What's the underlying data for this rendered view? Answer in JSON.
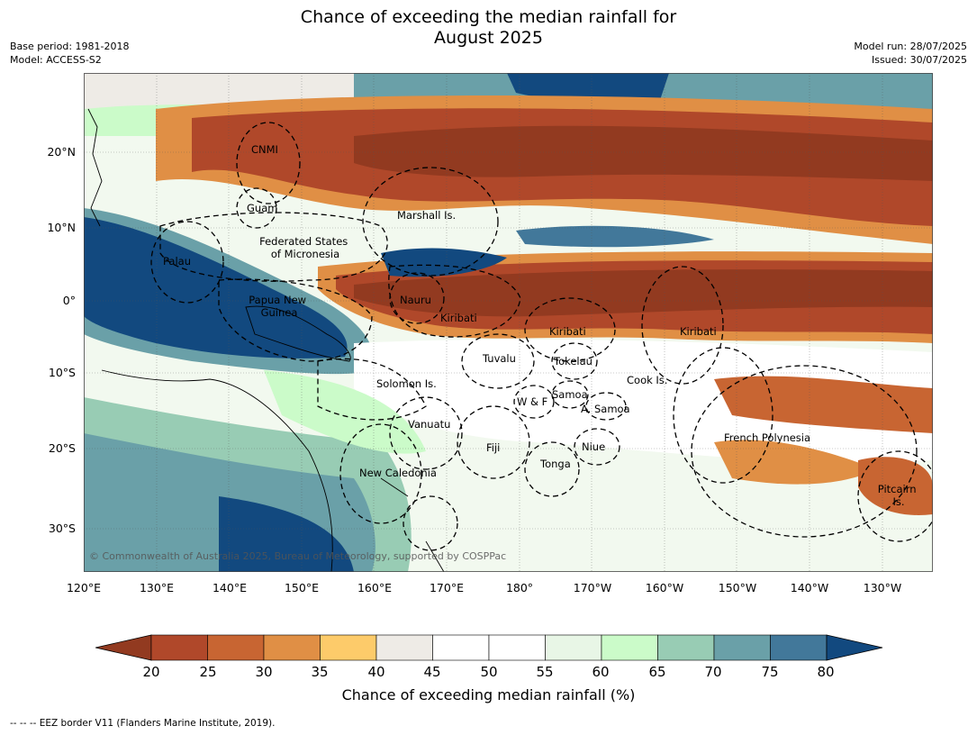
{
  "title_line1": "Chance of exceeding the median rainfall for",
  "title_line2": "August 2025",
  "meta_left": [
    "Base period: 1981-2018",
    "Model: ACCESS-S2"
  ],
  "meta_right": [
    "Model run: 28/07/2025",
    "Issued: 30/07/2025"
  ],
  "copyright": "© Commonwealth of Australia 2025, Bureau of Meteorology, supported by COSPPac",
  "lon_ticks": [
    "120°E",
    "130°E",
    "140°E",
    "150°E",
    "160°E",
    "170°E",
    "180°",
    "170°W",
    "160°W",
    "150°W",
    "140°W",
    "130°W"
  ],
  "lat_ticks": [
    "20°N",
    "10°N",
    "0°",
    "10°S",
    "20°S",
    "30°S"
  ],
  "regions": [
    {
      "name": "CNMI",
      "lines": [
        "CNMI"
      ]
    },
    {
      "name": "Guam",
      "lines": [
        "Guam"
      ]
    },
    {
      "name": "Marshall Is.",
      "lines": [
        "Marshall Is."
      ]
    },
    {
      "name": "Federated States of Micronesia",
      "lines": [
        "Federated States",
        "of Micronesia"
      ]
    },
    {
      "name": "Palau",
      "lines": [
        "Palau"
      ]
    },
    {
      "name": "Papua New Guinea",
      "lines": [
        "Papua New",
        "Guinea"
      ]
    },
    {
      "name": "Nauru",
      "lines": [
        "Nauru"
      ]
    },
    {
      "name": "Kiribati-west",
      "lines": [
        "Kiribati"
      ]
    },
    {
      "name": "Kiribati-central",
      "lines": [
        "Kiribati"
      ]
    },
    {
      "name": "Kiribati-east",
      "lines": [
        "Kiribati"
      ]
    },
    {
      "name": "Tuvalu",
      "lines": [
        "Tuvalu"
      ]
    },
    {
      "name": "Tokelau",
      "lines": [
        "Tokelau"
      ]
    },
    {
      "name": "Cook Is.",
      "lines": [
        "Cook Is."
      ]
    },
    {
      "name": "Solomon Is.",
      "lines": [
        "Solomon Is."
      ]
    },
    {
      "name": "W & F",
      "lines": [
        "W & F"
      ]
    },
    {
      "name": "Samoa",
      "lines": [
        "Samoa"
      ]
    },
    {
      "name": "A. Samoa",
      "lines": [
        "A. Samoa"
      ]
    },
    {
      "name": "Vanuatu",
      "lines": [
        "Vanuatu"
      ]
    },
    {
      "name": "Fiji",
      "lines": [
        "Fiji"
      ]
    },
    {
      "name": "Niue",
      "lines": [
        "Niue"
      ]
    },
    {
      "name": "French Polynesia",
      "lines": [
        "French Polynesia"
      ]
    },
    {
      "name": "Tonga",
      "lines": [
        "Tonga"
      ]
    },
    {
      "name": "New Caledonia",
      "lines": [
        "New Caledonia"
      ]
    },
    {
      "name": "Pitcairn Is.",
      "lines": [
        "Pitcairn",
        "Is."
      ]
    }
  ],
  "colorbar": {
    "labels": [
      "20",
      "25",
      "30",
      "35",
      "40",
      "45",
      "50",
      "55",
      "60",
      "65",
      "70",
      "75",
      "80"
    ],
    "colors": [
      "#923a20",
      "#b0482a",
      "#c86532",
      "#e08f45",
      "#fdcb6a",
      "#eeebe6",
      "#ffffff",
      "#ffffff",
      "#e8f6e6",
      "#cbfbc9",
      "#98ccb4",
      "#6aa0a8",
      "#42789a",
      "#12497f"
    ],
    "title": "Chance of exceeding median rainfall (%)"
  },
  "footer": "--  --  -- EEZ border V11 (Flanders Marine Institute, 2019)."
}
